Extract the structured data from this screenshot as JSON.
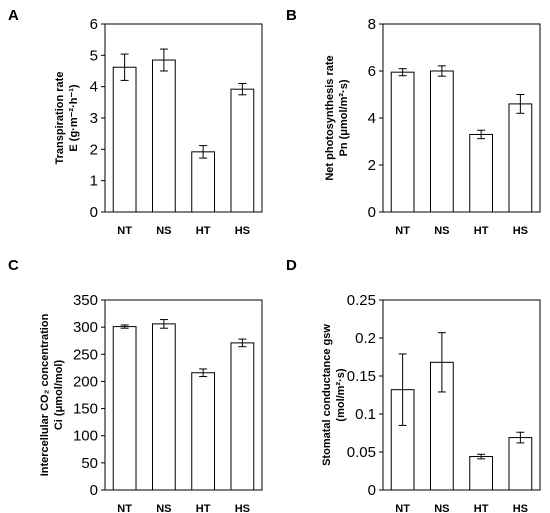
{
  "chart_data": [
    {
      "panel": "A",
      "type": "bar",
      "categories": [
        "NT",
        "NS",
        "HT",
        "HS"
      ],
      "values": [
        4.62,
        4.85,
        1.92,
        3.92
      ],
      "errors": [
        0.42,
        0.35,
        0.2,
        0.18
      ],
      "ylabel_lines": [
        "Transpiration rate",
        "E (g·m⁻²·h⁻¹)"
      ],
      "ylim": [
        0,
        6
      ],
      "yticks": [
        "0",
        "1",
        "2",
        "3",
        "4",
        "5",
        "6"
      ]
    },
    {
      "panel": "B",
      "type": "bar",
      "categories": [
        "NT",
        "NS",
        "HT",
        "HS"
      ],
      "values": [
        5.95,
        6.0,
        3.3,
        4.6
      ],
      "errors": [
        0.15,
        0.22,
        0.18,
        0.4
      ],
      "ylabel_lines": [
        "Net photosynthesis rate",
        "Pn (μmol/m²·s)"
      ],
      "ylim": [
        0,
        8
      ],
      "yticks": [
        "0",
        "2",
        "4",
        "6",
        "8"
      ]
    },
    {
      "panel": "C",
      "type": "bar",
      "categories": [
        "NT",
        "NS",
        "HT",
        "HS"
      ],
      "values": [
        301,
        306,
        216,
        271
      ],
      "errors": [
        3,
        8,
        7,
        7
      ],
      "ylabel_lines": [
        "Intercellular CO₂ concentration",
        "Ci (μmol/mol)"
      ],
      "ylim": [
        0,
        350
      ],
      "yticks": [
        "0",
        "50",
        "100",
        "150",
        "200",
        "250",
        "300",
        "350"
      ]
    },
    {
      "panel": "D",
      "type": "bar",
      "categories": [
        "NT",
        "NS",
        "HT",
        "HS"
      ],
      "values": [
        0.132,
        0.168,
        0.044,
        0.069
      ],
      "errors": [
        0.047,
        0.039,
        0.003,
        0.007
      ],
      "ylabel_lines": [
        "Stomatal  conductance  gsw",
        "(mol/m²·s)"
      ],
      "ylim": [
        0,
        0.25
      ],
      "yticks": [
        "0",
        "0.05",
        "0.1",
        "0.15",
        "0.2",
        "0.25"
      ]
    }
  ]
}
